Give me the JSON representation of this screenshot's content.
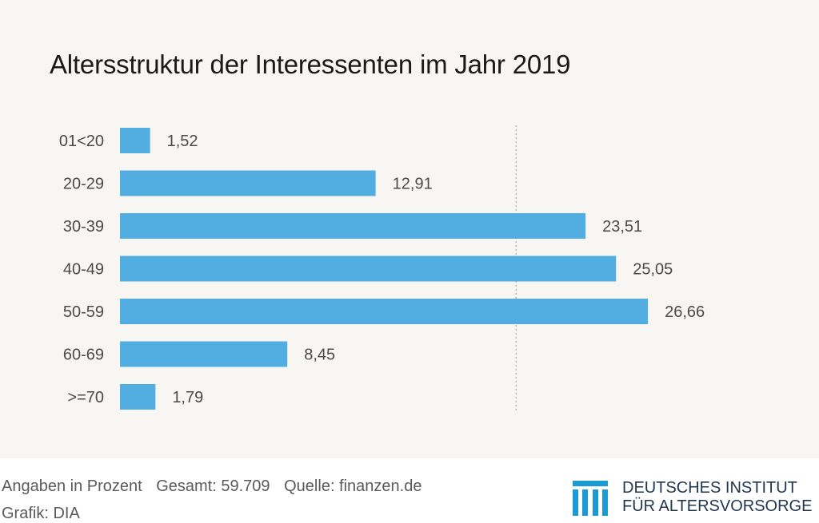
{
  "chart_data": {
    "type": "bar",
    "orientation": "horizontal",
    "title": "Altersstruktur der Interessenten im Jahr 2019",
    "categories": [
      "01<20",
      "20-29",
      "30-39",
      "40-49",
      "50-59",
      "60-69",
      ">=70"
    ],
    "values": [
      1.52,
      12.91,
      23.51,
      25.05,
      26.66,
      8.45,
      1.79
    ],
    "value_labels": [
      "1,52",
      "12,91",
      "23,51",
      "25,05",
      "26,66",
      "8,45",
      "1,79"
    ],
    "xlim": [
      0,
      27
    ],
    "reference_line": 20,
    "bar_color": "#52ade0",
    "grid": false,
    "legend": "none"
  },
  "footer": {
    "unit_note": "Angaben in Prozent",
    "total_note": "Gesamt: 59.709",
    "source_note": "Quelle: finanzen.de",
    "credit_note": "Grafik: DIA"
  },
  "logo": {
    "line1": "DEUTSCHES INSTITUT",
    "line2": "FÜR ALTERSVORSORGE",
    "color": "#1f3550",
    "accent": "#1b9ad6"
  }
}
